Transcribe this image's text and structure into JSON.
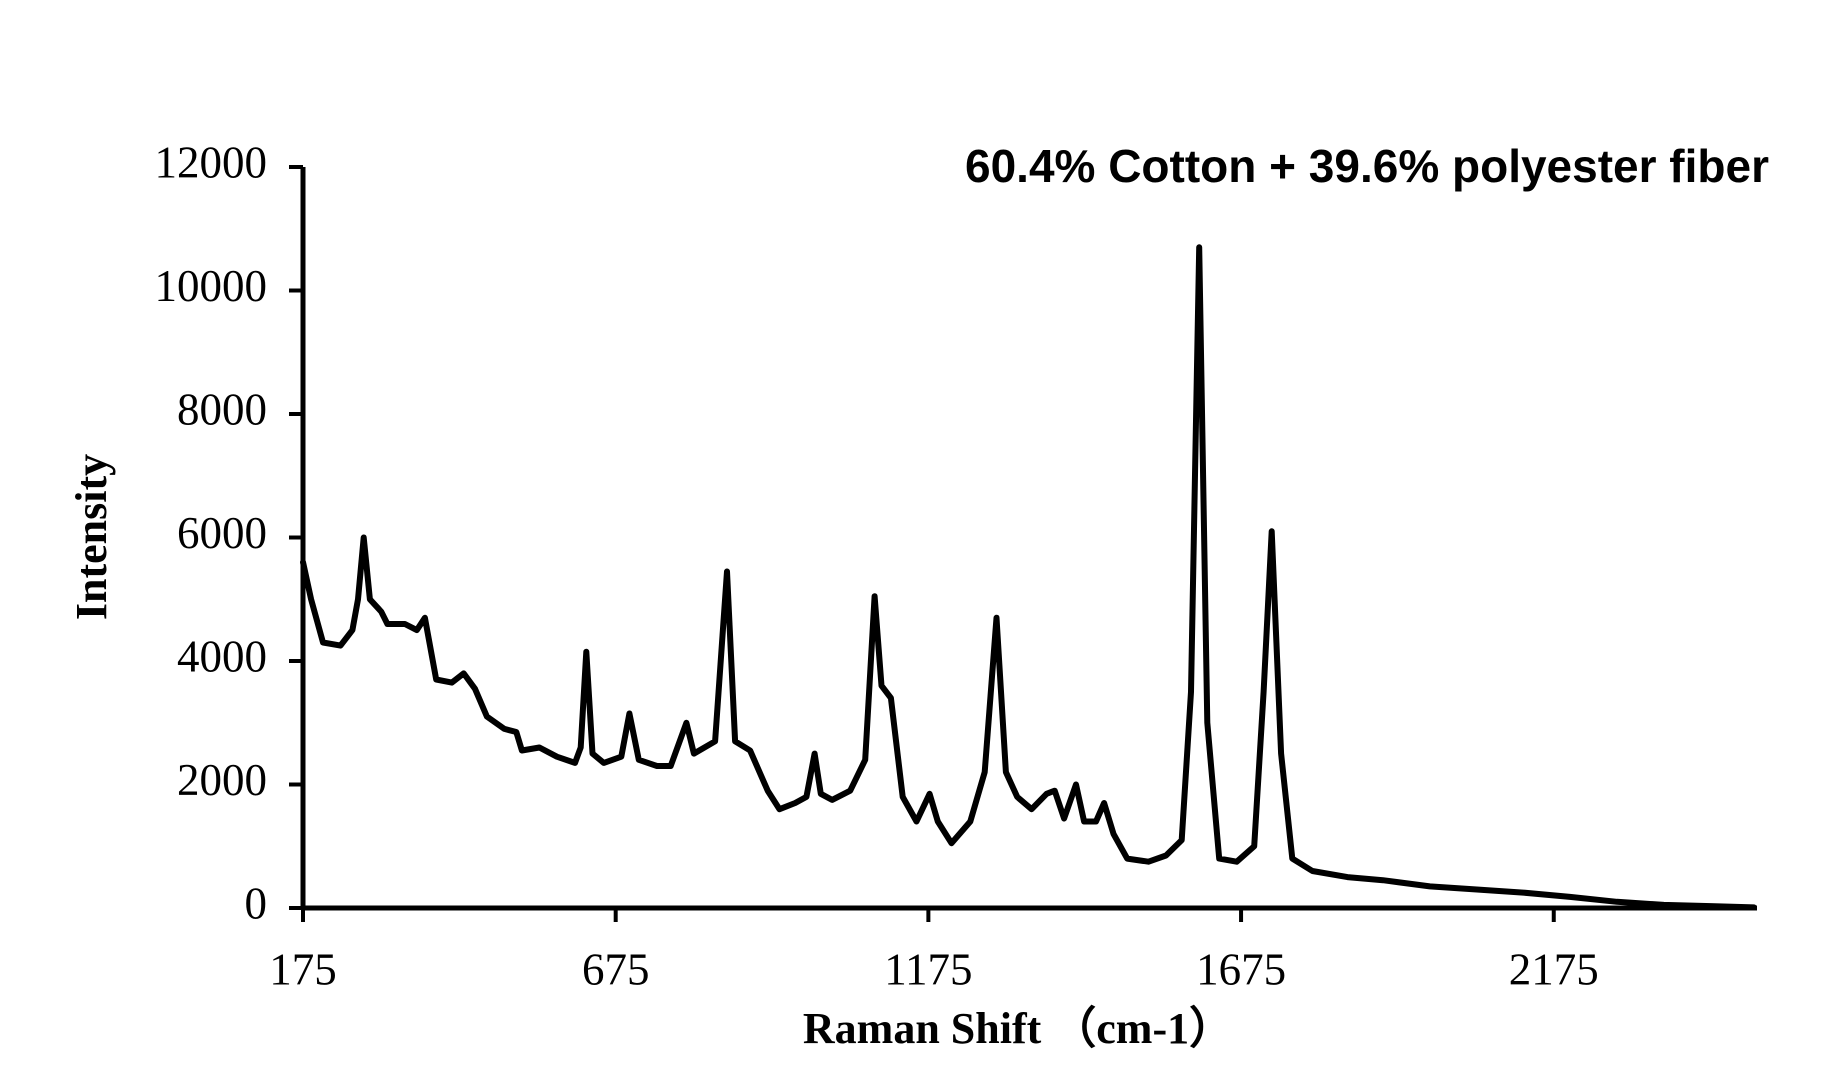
{
  "chart_data": {
    "type": "line",
    "title": "60.4% Cotton + 39.6% polyester fiber",
    "x_label": "Raman Shift （cm-1）",
    "y_label": "Intensity",
    "xlim": [
      175,
      2500
    ],
    "xticks": [
      175,
      675,
      1175,
      1675,
      2175
    ],
    "ylim": [
      0,
      12000
    ],
    "yticks": [
      0,
      2000,
      4000,
      6000,
      8000,
      10000,
      12000
    ],
    "series": [
      {
        "color": "#000000",
        "x": [
          175,
          188,
          207,
          235,
          254,
          263,
          272,
          282,
          300,
          310,
          338,
          357,
          370,
          388,
          413,
          432,
          450,
          469,
          497,
          516,
          525,
          553,
          581,
          610,
          619,
          628,
          638,
          656,
          684,
          697,
          712,
          741,
          763,
          788,
          800,
          834,
          853,
          866,
          890,
          918,
          937,
          962,
          980,
          993,
          1003,
          1021,
          1050,
          1074,
          1089,
          1100,
          1115,
          1134,
          1156,
          1177,
          1190,
          1212,
          1242,
          1265,
          1284,
          1299,
          1317,
          1340,
          1364,
          1377,
          1392,
          1411,
          1424,
          1443,
          1456,
          1471,
          1493,
          1527,
          1555,
          1580,
          1595,
          1608,
          1621,
          1640,
          1668,
          1696,
          1711,
          1724,
          1739,
          1757,
          1789,
          1845,
          1902,
          1977,
          2052,
          2126,
          2201,
          2276,
          2351,
          2426,
          2495
        ],
        "values": [
          5600,
          5000,
          4300,
          4250,
          4500,
          5000,
          6000,
          5000,
          4800,
          4600,
          4600,
          4500,
          4700,
          3700,
          3650,
          3800,
          3550,
          3100,
          2900,
          2850,
          2550,
          2600,
          2450,
          2350,
          2600,
          4150,
          2500,
          2350,
          2450,
          3150,
          2400,
          2300,
          2300,
          3000,
          2500,
          2700,
          5450,
          2700,
          2550,
          1900,
          1600,
          1700,
          1800,
          2500,
          1850,
          1750,
          1900,
          2400,
          5050,
          3600,
          3400,
          1800,
          1400,
          1850,
          1400,
          1050,
          1400,
          2200,
          4700,
          2200,
          1800,
          1600,
          1850,
          1900,
          1450,
          2000,
          1400,
          1400,
          1700,
          1200,
          800,
          750,
          850,
          1100,
          3500,
          10700,
          3000,
          800,
          750,
          1000,
          3500,
          6100,
          2500,
          800,
          600,
          500,
          450,
          350,
          300,
          250,
          180,
          100,
          50,
          30,
          10
        ]
      }
    ]
  }
}
